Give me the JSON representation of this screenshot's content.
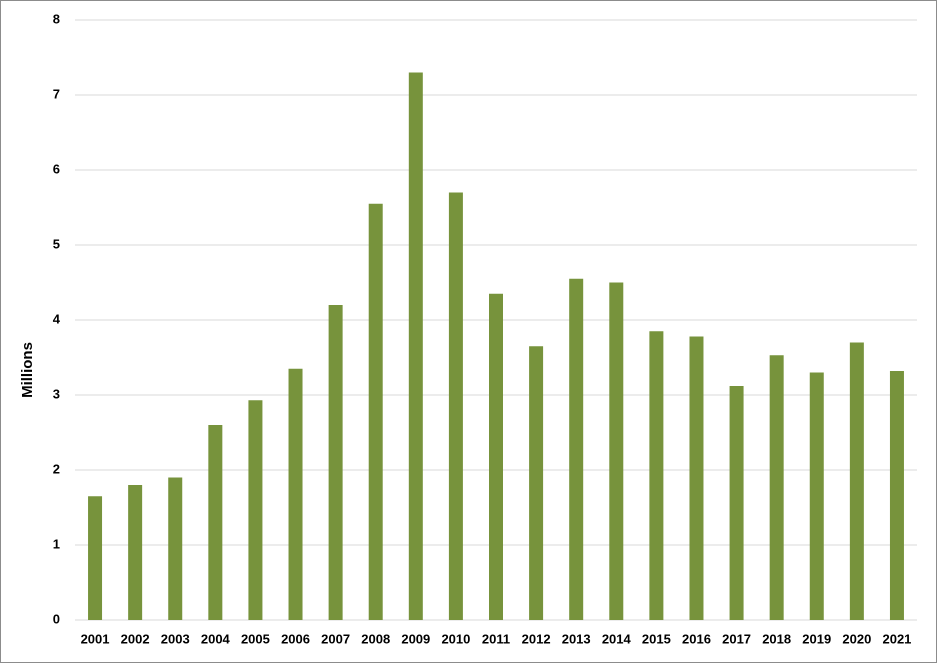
{
  "chart_data": {
    "type": "bar",
    "y_label": "Millions",
    "categories": [
      "2001",
      "2002",
      "2003",
      "2004",
      "2005",
      "2006",
      "2007",
      "2008",
      "2009",
      "2010",
      "2011",
      "2012",
      "2013",
      "2014",
      "2015",
      "2016",
      "2017",
      "2018",
      "2019",
      "2020",
      "2021"
    ],
    "values": [
      1.65,
      1.8,
      1.9,
      2.6,
      2.93,
      3.35,
      4.2,
      5.55,
      7.3,
      5.7,
      4.35,
      3.65,
      4.55,
      4.5,
      3.85,
      3.78,
      3.12,
      3.53,
      3.3,
      3.7,
      3.32
    ],
    "color": "#77933c",
    "ylim": [
      0,
      8
    ],
    "yticks": [
      0,
      1,
      2,
      3,
      4,
      5,
      6,
      7,
      8
    ],
    "grid": true
  }
}
